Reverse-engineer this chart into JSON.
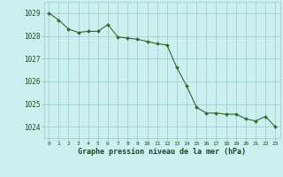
{
  "x": [
    0,
    1,
    2,
    3,
    4,
    5,
    6,
    7,
    8,
    9,
    10,
    11,
    12,
    13,
    14,
    15,
    16,
    17,
    18,
    19,
    20,
    21,
    22,
    23
  ],
  "y": [
    1029.0,
    1028.7,
    1028.3,
    1028.15,
    1028.2,
    1028.2,
    1028.5,
    1027.95,
    1027.9,
    1027.85,
    1027.75,
    1027.65,
    1027.6,
    1026.6,
    1025.8,
    1024.85,
    1024.6,
    1024.6,
    1024.55,
    1024.55,
    1024.35,
    1024.25,
    1024.45,
    1024.0
  ],
  "line_color": "#2d6a2d",
  "marker_color": "#2d6a2d",
  "bg_color": "#ccf0f0",
  "grid_color": "#a0c8c8",
  "xlabel": "Graphe pression niveau de la mer (hPa)",
  "xlabel_color": "#1a4a1a",
  "tick_color": "#1a4a1a",
  "ylim": [
    1023.5,
    1029.5
  ],
  "xlim": [
    -0.5,
    23.5
  ],
  "yticks": [
    1024,
    1025,
    1026,
    1027,
    1028,
    1029
  ],
  "xticks": [
    0,
    1,
    2,
    3,
    4,
    5,
    6,
    7,
    8,
    9,
    10,
    11,
    12,
    13,
    14,
    15,
    16,
    17,
    18,
    19,
    20,
    21,
    22,
    23
  ],
  "xtick_labels": [
    "0",
    "1",
    "2",
    "3",
    "4",
    "5",
    "6",
    "7",
    "8",
    "9",
    "10",
    "11",
    "12",
    "13",
    "14",
    "15",
    "16",
    "17",
    "18",
    "19",
    "20",
    "21",
    "22",
    "23"
  ]
}
